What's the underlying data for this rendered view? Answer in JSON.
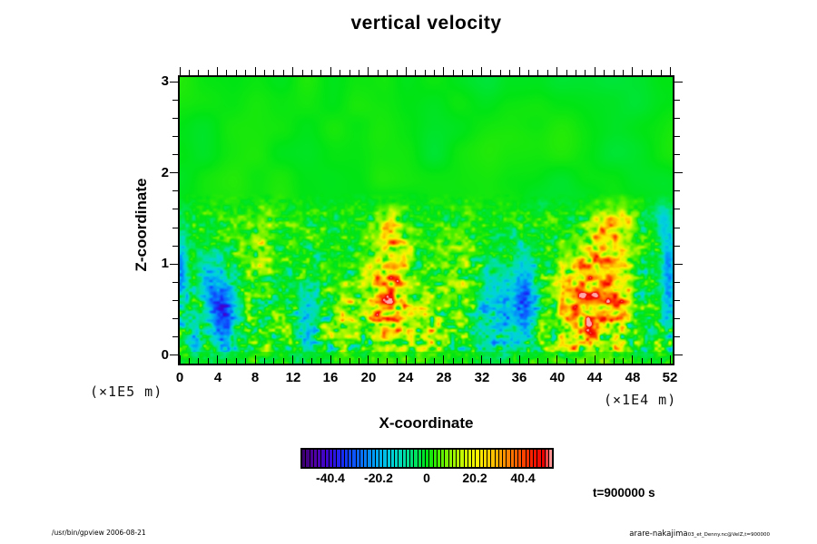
{
  "title": "vertical velocity",
  "axes": {
    "x_title": "X-coordinate",
    "y_title": "Z-coordinate",
    "x_unit": "(×1E4 m)",
    "y_unit": "(×1E5 m)"
  },
  "time_label": "t=900000 s",
  "footer": {
    "left": "/usr/bin/gpview 2006-08-21",
    "right_main": "arare-nakajima",
    "right_sub": "03_et_Denny.nc@VelZ,t=900000"
  },
  "chart_data": {
    "type": "heatmap",
    "title": "vertical velocity",
    "xlabel": "X-coordinate (×1E4 m)",
    "ylabel": "Z-coordinate (×1E5 m)",
    "xlim": [
      0,
      52.25
    ],
    "zlim": [
      -0.09,
      3.05
    ],
    "x_major_ticks": [
      0,
      4,
      8,
      12,
      16,
      20,
      24,
      28,
      32,
      36,
      40,
      44,
      48,
      52
    ],
    "x_minor_step": 1,
    "z_major_ticks": [
      0,
      1,
      2,
      3
    ],
    "z_minor_step": 0.2,
    "grid": false,
    "time_label": "t=900000 s",
    "colorbar": {
      "min": -52.5,
      "max": 52.5,
      "cells": 65,
      "tick_values": [
        -40.4,
        -20.2,
        0,
        20.2,
        40.4
      ],
      "tick_labels": [
        "-40.4",
        "-20.2",
        "0",
        "20.2",
        "40.4"
      ]
    },
    "colormap_stops": [
      [
        -52.5,
        "#38006b"
      ],
      [
        -47,
        "#5202a8"
      ],
      [
        -41,
        "#3a06d8"
      ],
      [
        -35,
        "#1430f8"
      ],
      [
        -28,
        "#0a6cff"
      ],
      [
        -21,
        "#00aaf4"
      ],
      [
        -15,
        "#00d2dc"
      ],
      [
        -9,
        "#00e0a0"
      ],
      [
        -4,
        "#00e450"
      ],
      [
        0,
        "#00e414"
      ],
      [
        4,
        "#3cee00"
      ],
      [
        9,
        "#86f400"
      ],
      [
        15,
        "#c8f800"
      ],
      [
        21,
        "#fdf200"
      ],
      [
        27,
        "#ffc400"
      ],
      [
        33,
        "#ff8c00"
      ],
      [
        39,
        "#ff5000"
      ],
      [
        45,
        "#fb1400"
      ],
      [
        49,
        "#e80000"
      ],
      [
        51,
        "#ff8080"
      ],
      [
        52.5,
        "#ffaaaa"
      ]
    ],
    "field": {
      "background_value": 0,
      "quiet_above_z": 1.78,
      "turbulence_ramp": 0.26,
      "seed": 7,
      "base_speckle_amp": 26,
      "features": [
        {
          "x": 4.6,
          "z": 0.45,
          "rx": 1.4,
          "rz": 0.4,
          "amp": -50
        },
        {
          "x": 3.0,
          "z": 0.8,
          "rx": 0.9,
          "rz": 0.3,
          "amp": -26
        },
        {
          "x": 1.6,
          "z": 0.15,
          "rx": 0.8,
          "rz": 0.22,
          "amp": -26
        },
        {
          "x": 0.2,
          "z": 0.95,
          "rx": 0.6,
          "rz": 0.4,
          "amp": -32
        },
        {
          "x": 13.6,
          "z": 0.45,
          "rx": 1.1,
          "rz": 0.45,
          "amp": -22
        },
        {
          "x": 8.6,
          "z": 1.15,
          "rx": 1.6,
          "rz": 0.45,
          "amp": 15
        },
        {
          "x": 17.2,
          "z": 0.35,
          "rx": 1.4,
          "rz": 0.35,
          "amp": 16
        },
        {
          "x": 21.8,
          "z": 0.55,
          "rx": 2.4,
          "rz": 0.55,
          "amp": 34
        },
        {
          "x": 22.4,
          "z": 1.15,
          "rx": 1.6,
          "rz": 0.5,
          "amp": 28
        },
        {
          "x": 25.9,
          "z": 0.3,
          "rx": 1.3,
          "rz": 0.3,
          "amp": 24
        },
        {
          "x": 29.5,
          "z": 0.85,
          "rx": 1.8,
          "rz": 0.5,
          "amp": 12
        },
        {
          "x": 33.8,
          "z": 0.5,
          "rx": 2.3,
          "rz": 0.5,
          "amp": -24
        },
        {
          "x": 36.6,
          "z": 0.6,
          "rx": 1.2,
          "rz": 0.45,
          "amp": -36
        },
        {
          "x": 42.5,
          "z": 0.5,
          "rx": 2.6,
          "rz": 0.6,
          "amp": 46
        },
        {
          "x": 46.5,
          "z": 0.55,
          "rx": 1.4,
          "rz": 0.5,
          "amp": 28
        },
        {
          "x": 44.9,
          "z": 1.15,
          "rx": 1.9,
          "rz": 0.55,
          "amp": 32
        },
        {
          "x": 47.2,
          "z": 1.5,
          "rx": 1.3,
          "rz": 0.3,
          "amp": 20
        },
        {
          "x": 51.8,
          "z": 0.8,
          "rx": 0.8,
          "rz": 0.5,
          "amp": -32
        },
        {
          "x": 51.2,
          "z": 1.55,
          "rx": 0.9,
          "rz": 0.28,
          "amp": -16
        }
      ]
    }
  }
}
